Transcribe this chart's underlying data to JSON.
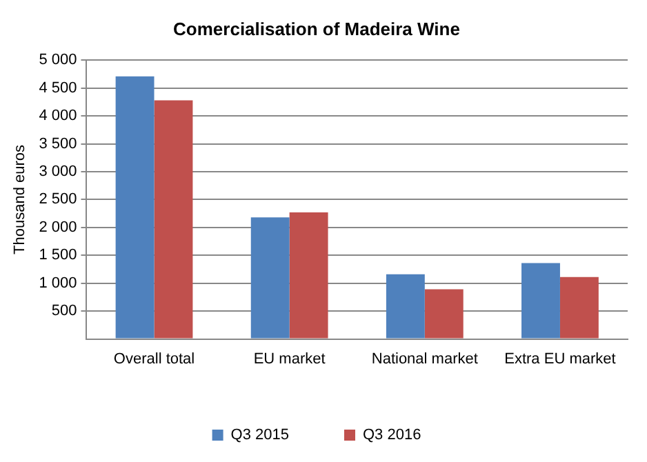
{
  "chart_data": {
    "type": "bar",
    "title": "Comercialisation of Madeira Wine",
    "ylabel": "Thousand euros",
    "categories": [
      "Overall total",
      "EU market",
      "National market",
      "Extra EU market"
    ],
    "series": [
      {
        "name": "Q3 2015",
        "color": "#4f81bd",
        "values": [
          4710,
          2180,
          1160,
          1360
        ]
      },
      {
        "name": "Q3 2016",
        "color": "#c0504d",
        "values": [
          4280,
          2270,
          890,
          1110
        ]
      }
    ],
    "ylim": [
      0,
      5000
    ],
    "yticks": [
      {
        "value": 0,
        "label": null
      },
      500,
      {
        "value": 1000,
        "label": "1 000"
      },
      {
        "value": 1500,
        "label": "1 500"
      },
      {
        "value": 2000,
        "label": "2 000"
      },
      {
        "value": 2500,
        "label": "2 500"
      },
      {
        "value": 3000,
        "label": "3 000"
      },
      {
        "value": 3500,
        "label": "3 500"
      },
      {
        "value": 4000,
        "label": "4 000"
      },
      {
        "value": 4500,
        "label": "4 500"
      },
      {
        "value": 5000,
        "label": "5 000"
      }
    ],
    "grid": "y",
    "legend": "bottom"
  }
}
